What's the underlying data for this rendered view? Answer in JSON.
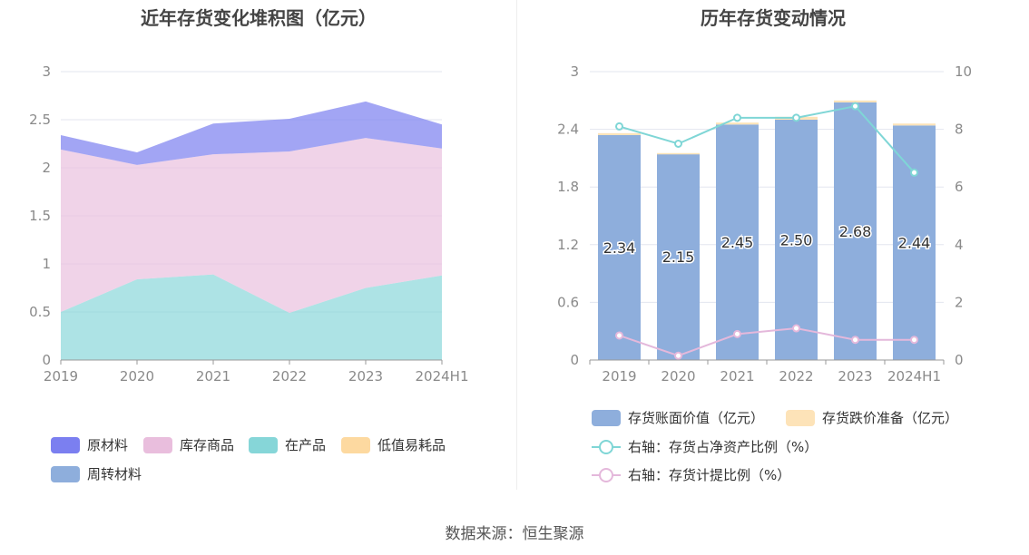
{
  "left_chart": {
    "title": "近年存货变化堆积图（亿元）",
    "legend": [
      "原材料",
      "库存商品",
      "在产品",
      "低值易耗品",
      "周转材料"
    ]
  },
  "right_chart": {
    "title": "历年存货变动情况",
    "legend": [
      "存货账面价值（亿元）",
      "存货跌价准备（亿元）",
      "右轴：存货占净资产比例（%）",
      "右轴：存货计提比例（%）"
    ]
  },
  "source": "数据来源：恒生聚源",
  "colors": {
    "raw_material": "#7b7ff0",
    "inventory_goods": "#e9bedd",
    "in_process": "#86d6d8",
    "low_value": "#fdd9a0",
    "turnover": "#8eaedc",
    "book_value_bar": "#8eaedc",
    "provision_bar": "#fde3b8",
    "ratio_net_assets_line": "#7fd6d6",
    "provision_ratio_line": "#e4b8db",
    "grid": "#e3e6ef",
    "axis": "#8a8a8a"
  },
  "chart_data": [
    {
      "type": "area",
      "stacked": true,
      "categories": [
        "2019",
        "2020",
        "2021",
        "2022",
        "2023",
        "2024H1"
      ],
      "ylim": [
        0,
        3
      ],
      "yticks": [
        "0",
        "0.5",
        "1",
        "1.5",
        "2",
        "2.5",
        "3"
      ],
      "series": [
        {
          "name": "在产品",
          "values": [
            0.5,
            0.84,
            0.89,
            0.49,
            0.75,
            0.88
          ]
        },
        {
          "name": "库存商品",
          "values": [
            1.69,
            1.19,
            1.25,
            1.68,
            1.56,
            1.32
          ]
        },
        {
          "name": "原材料",
          "values": [
            0.15,
            0.13,
            0.32,
            0.34,
            0.38,
            0.25
          ]
        },
        {
          "name": "低值易耗品",
          "values": [
            0,
            0,
            0,
            0,
            0,
            0
          ]
        },
        {
          "name": "周转材料",
          "values": [
            0,
            0,
            0,
            0,
            0,
            0
          ]
        }
      ]
    },
    {
      "type": "bar",
      "stacked": true,
      "categories": [
        "2019",
        "2020",
        "2021",
        "2022",
        "2023",
        "2024H1"
      ],
      "ylim": [
        0,
        3
      ],
      "yticks": [
        "0",
        "0.6",
        "1.2",
        "1.8",
        "2.4",
        "3"
      ],
      "y2lim": [
        0,
        10
      ],
      "y2ticks": [
        "0",
        "2",
        "4",
        "6",
        "8",
        "10"
      ],
      "series": [
        {
          "name": "存货账面价值（亿元）",
          "axis": "left",
          "values": [
            2.34,
            2.15,
            2.45,
            2.5,
            2.68,
            2.44
          ],
          "labels": [
            "2.34",
            "2.15",
            "2.45",
            "2.50",
            "2.68",
            "2.44"
          ]
        },
        {
          "name": "存货跌价准备（亿元）",
          "axis": "left",
          "values": [
            0.02,
            0.003,
            0.02,
            0.03,
            0.02,
            0.02
          ]
        },
        {
          "name": "右轴：存货占净资产比例（%）",
          "axis": "right",
          "type": "line",
          "values": [
            8.1,
            7.5,
            8.4,
            8.4,
            8.8,
            6.5
          ]
        },
        {
          "name": "右轴：存货计提比例（%）",
          "axis": "right",
          "type": "line",
          "values": [
            0.85,
            0.15,
            0.9,
            1.1,
            0.7,
            0.7
          ]
        }
      ]
    }
  ]
}
